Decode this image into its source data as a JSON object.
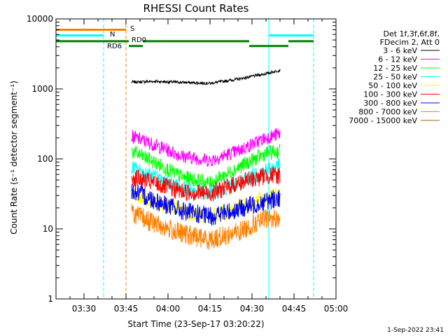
{
  "chart_data": {
    "type": "line",
    "title": "RHESSI Count Rates",
    "xlabel": "Start Time (23-Sep-17 03:20:22)",
    "ylabel": "Count Rate (s⁻¹ detector segment⁻¹)",
    "x_range": [
      "03:20",
      "05:00"
    ],
    "x_ticks": [
      "03:30",
      "03:45",
      "04:00",
      "04:15",
      "04:30",
      "04:45",
      "05:00"
    ],
    "y_scale": "log",
    "ylim": [
      1,
      10000
    ],
    "y_ticks": [
      "1",
      "10",
      "100",
      "1000",
      "10000"
    ],
    "grid": false,
    "legend_position": "right",
    "legend_header": [
      "Det 1f,3f,6f,8f,",
      "FDecim 2, Att 0"
    ],
    "series": [
      {
        "name": "3 - 6 keV",
        "color": "#000000",
        "x": [
          "03:47",
          "03:55",
          "04:05",
          "04:15",
          "04:25",
          "04:35",
          "04:40"
        ],
        "values": [
          1250,
          1280,
          1240,
          1200,
          1380,
          1650,
          1850
        ]
      },
      {
        "name": "6 - 12 keV",
        "color": "#ff00ff",
        "x": [
          "03:47",
          "03:55",
          "04:05",
          "04:15",
          "04:25",
          "04:35",
          "04:40"
        ],
        "values": [
          210,
          160,
          110,
          95,
          130,
          200,
          230
        ]
      },
      {
        "name": "12 - 25 keV",
        "color": "#00ff00",
        "x": [
          "03:47",
          "03:55",
          "04:05",
          "04:15",
          "04:25",
          "04:35",
          "04:40"
        ],
        "values": [
          130,
          90,
          55,
          45,
          75,
          120,
          130
        ]
      },
      {
        "name": "25 - 50 keV",
        "color": "#00ffff",
        "x": [
          "03:47",
          "03:55",
          "04:05",
          "04:15",
          "04:25",
          "04:35",
          "04:40"
        ],
        "values": [
          75,
          55,
          38,
          32,
          45,
          70,
          80
        ]
      },
      {
        "name": "50 - 100 keV",
        "color": "#ffff00",
        "x": [
          "03:47",
          "03:55",
          "04:05",
          "04:15",
          "04:25",
          "04:35",
          "04:40"
        ],
        "values": [
          30,
          25,
          18,
          15,
          20,
          28,
          30
        ]
      },
      {
        "name": "100 - 300 keV",
        "color": "#ff0000",
        "x": [
          "03:47",
          "03:55",
          "04:05",
          "04:15",
          "04:25",
          "04:35",
          "04:40"
        ],
        "values": [
          55,
          45,
          34,
          32,
          45,
          58,
          58
        ]
      },
      {
        "name": "300 - 800 keV",
        "color": "#0000ff",
        "x": [
          "03:47",
          "03:55",
          "04:05",
          "04:15",
          "04:25",
          "04:35",
          "04:40"
        ],
        "values": [
          35,
          26,
          18,
          15,
          19,
          25,
          28
        ]
      },
      {
        "name": "800 - 7000 keV",
        "color": "#ff8000",
        "x": [
          "03:47",
          "03:55",
          "04:05",
          "04:15",
          "04:25",
          "04:35",
          "04:40"
        ],
        "values": [
          17,
          12,
          8.5,
          7,
          9,
          14,
          14
        ]
      },
      {
        "name": "7000 - 15000 keV",
        "color": "#a06000",
        "x": [],
        "values": []
      }
    ],
    "annotations": [
      {
        "text": "S",
        "color": "#ff8000"
      },
      {
        "text": "N",
        "color": "#00ffff"
      },
      {
        "text": "RD6",
        "color": "#008000"
      },
      {
        "text": "RD0",
        "color": "#008000"
      }
    ],
    "status_segments": [
      {
        "label": "S",
        "color": "#ff8000",
        "log_level": 7000,
        "spans": [
          [
            "03:20",
            "03:45"
          ]
        ]
      },
      {
        "label": "N",
        "color": "#00ffff",
        "log_level": 5800,
        "spans": [
          [
            "03:20",
            "03:37"
          ],
          [
            "04:36",
            "04:52"
          ]
        ]
      },
      {
        "label": "RD",
        "color": "#008000",
        "log_level": 4800,
        "spans": [
          [
            "03:20",
            "03:46"
          ],
          [
            "03:51",
            "04:29"
          ],
          [
            "04:43",
            "04:52"
          ]
        ]
      },
      {
        "label": "RD",
        "color": "#008000",
        "log_level": 4100,
        "spans": [
          [
            "03:46",
            "03:51"
          ],
          [
            "04:29",
            "04:43"
          ]
        ]
      }
    ],
    "vertical_markers": [
      {
        "x": "03:20",
        "color": "#00ffff",
        "style": "solid"
      },
      {
        "x": "03:37",
        "color": "#00ffff",
        "style": "dashed"
      },
      {
        "x": "03:45",
        "color": "#ff8000",
        "style": "dashed"
      },
      {
        "x": "04:36",
        "color": "#00ffff",
        "style": "solid"
      },
      {
        "x": "04:52",
        "color": "#00ffff",
        "style": "dashed"
      }
    ]
  },
  "footer": "1-Sep-2022 23:41"
}
